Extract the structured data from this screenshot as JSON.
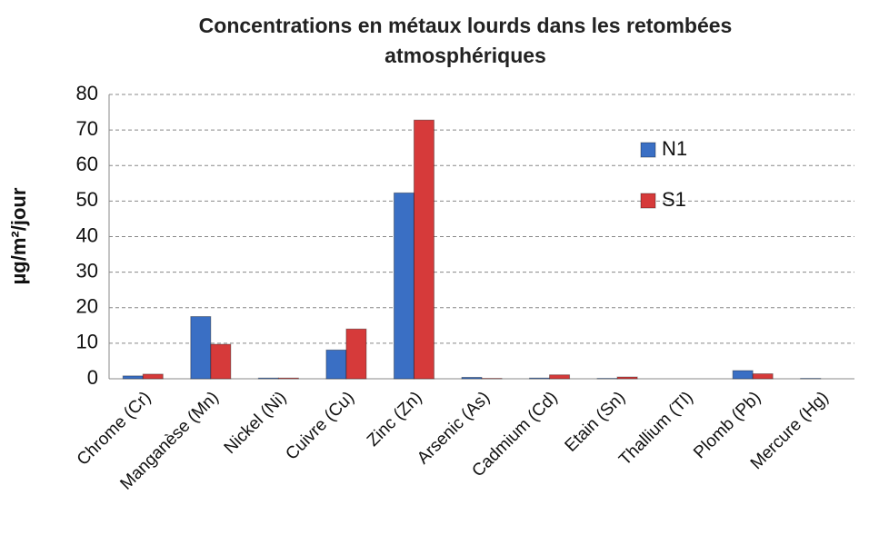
{
  "chart_data": {
    "type": "bar",
    "title": "Concentrations en métaux lourds dans les retombées atmosphériques",
    "y_label": "µg/m²/jour",
    "categories": [
      "Chrome (Cr)",
      "Manganèse (Mn)",
      "Nickel (Ni)",
      "Cuivre (Cu)",
      "Zinc (Zn)",
      "Arsenic (As)",
      "Cadmium (Cd)",
      "Etain (Sn)",
      "Thallium (Tl)",
      "Plomb (Pb)",
      "Mercure (Hg)"
    ],
    "series": [
      {
        "name": "N1",
        "color": "#3a6fc4",
        "values": [
          0.8,
          17.5,
          0.2,
          8.1,
          52.3,
          0.4,
          0.2,
          0.1,
          0,
          2.3,
          0.1
        ]
      },
      {
        "name": "S1",
        "color": "#d63a3a",
        "values": [
          1.3,
          9.7,
          0.2,
          14.0,
          72.8,
          0.1,
          1.1,
          0.5,
          0,
          1.4,
          0
        ]
      }
    ],
    "ylim": [
      0,
      80
    ],
    "yticks": [
      0,
      10,
      20,
      30,
      40,
      50,
      60,
      70,
      80
    ],
    "grid": true,
    "legend": "right"
  }
}
